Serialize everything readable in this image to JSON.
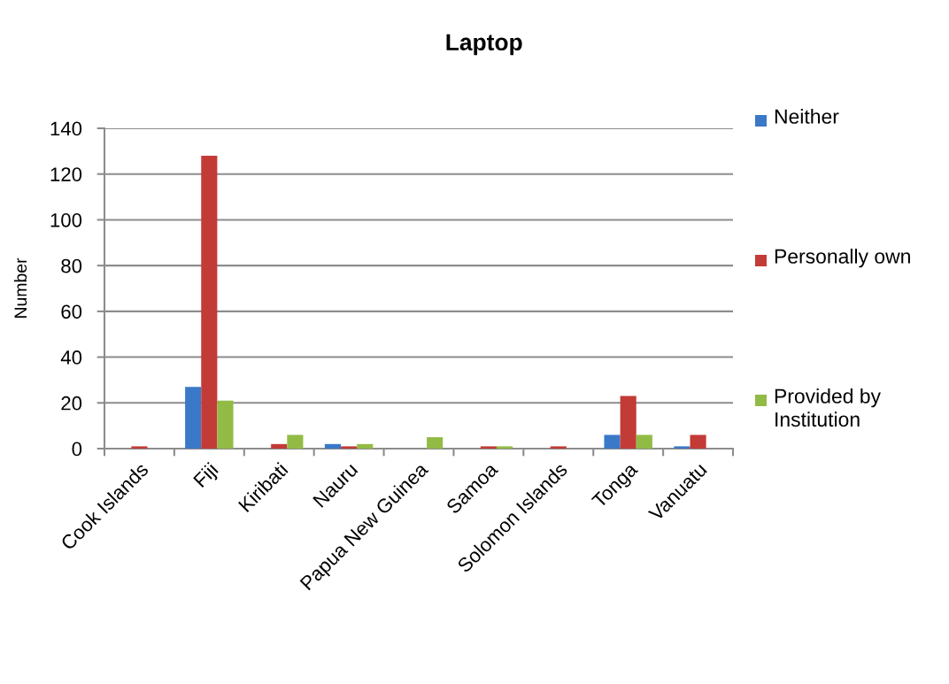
{
  "chart_data": {
    "type": "bar",
    "title": "Laptop",
    "ylabel": "Number",
    "categories": [
      "Cook Islands",
      "Fiji",
      "Kiribati",
      "Nauru",
      "Papua New Guinea",
      "Samoa",
      "Solomon Islands",
      "Tonga",
      "Vanuatu"
    ],
    "series": [
      {
        "name": "Neither",
        "color": "#3a78c8",
        "values": [
          null,
          27,
          null,
          2,
          null,
          null,
          null,
          6,
          1
        ]
      },
      {
        "name": "Personally own",
        "color": "#c33b37",
        "values": [
          1,
          128,
          2,
          1,
          null,
          1,
          1,
          23,
          6
        ]
      },
      {
        "name": "Provided by Institution",
        "color": "#92bb45",
        "values": [
          null,
          21,
          6,
          2,
          5,
          1,
          null,
          6,
          null
        ]
      }
    ],
    "ylim": [
      0,
      140
    ],
    "yticks": [
      0,
      20,
      40,
      60,
      80,
      100,
      120,
      140
    ],
    "grid": "y",
    "legend": "right"
  }
}
